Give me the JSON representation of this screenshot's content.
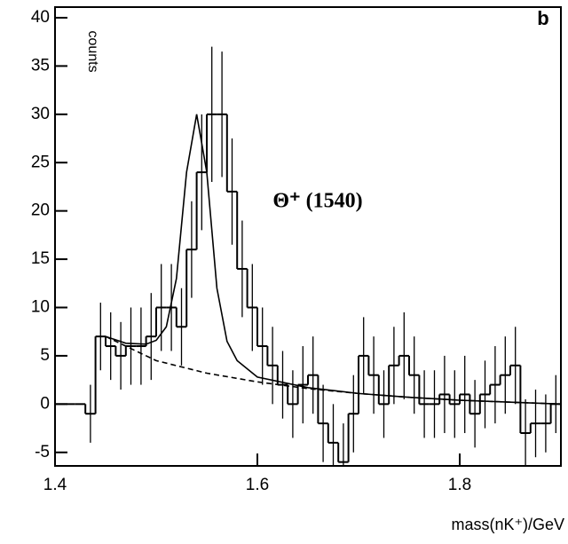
{
  "chart_data": {
    "type": "histogram",
    "panel_label": "b",
    "y_label": "counts",
    "x_label": "mass(nK⁺)/GeV",
    "annotation": "Θ⁺ (1540)",
    "bins": [
      1.4,
      1.41,
      1.42,
      1.43,
      1.44,
      1.45,
      1.46,
      1.47,
      1.48,
      1.49,
      1.5,
      1.51,
      1.52,
      1.53,
      1.54,
      1.55,
      1.56,
      1.57,
      1.58,
      1.59,
      1.6,
      1.61,
      1.62,
      1.63,
      1.64,
      1.65,
      1.66,
      1.67,
      1.68,
      1.69,
      1.7,
      1.71,
      1.72,
      1.73,
      1.74,
      1.75,
      1.76,
      1.77,
      1.78,
      1.79,
      1.8,
      1.81,
      1.82,
      1.83,
      1.84,
      1.85,
      1.86,
      1.87,
      1.88,
      1.89,
      1.9
    ],
    "values": [
      0,
      0,
      0,
      -1,
      7,
      6,
      5,
      6,
      6,
      7,
      10,
      10,
      8,
      16,
      24,
      30,
      30,
      22,
      14,
      10,
      6,
      4,
      2,
      0,
      2,
      3,
      -2,
      -4,
      -6,
      -1,
      5,
      3,
      0,
      4,
      5,
      3,
      0,
      0,
      1,
      0,
      1,
      -1,
      1,
      2,
      3,
      4,
      -3,
      -2,
      -2,
      0
    ],
    "errors": [
      0,
      0,
      0,
      3,
      3.5,
      3.5,
      3.5,
      4,
      4,
      4.5,
      4.5,
      4.5,
      4,
      5,
      6,
      7,
      6.5,
      5.5,
      5,
      4.5,
      4,
      4,
      3.5,
      3.5,
      4,
      4,
      4,
      4,
      4,
      4,
      4,
      4,
      3.5,
      4,
      4.5,
      4,
      3.5,
      3.5,
      4,
      3.5,
      4,
      3.5,
      3.5,
      4,
      4,
      4,
      3.5,
      3.5,
      3,
      3
    ],
    "fit": {
      "x": [
        1.45,
        1.47,
        1.49,
        1.5,
        1.51,
        1.52,
        1.53,
        1.54,
        1.55,
        1.56,
        1.57,
        1.58,
        1.6,
        1.65,
        1.7,
        1.75,
        1.8,
        1.85,
        1.9
      ],
      "values": [
        7,
        6.3,
        6.2,
        6.6,
        8,
        13,
        24,
        30,
        24,
        12,
        6.5,
        4.5,
        2.8,
        1.7,
        1.1,
        0.7,
        0.4,
        0.2,
        0
      ]
    },
    "background": {
      "x": [
        1.45,
        1.5,
        1.55,
        1.6,
        1.65,
        1.7,
        1.75,
        1.8,
        1.85,
        1.9
      ],
      "values": [
        7,
        4.5,
        3.2,
        2.3,
        1.6,
        1.1,
        0.7,
        0.4,
        0.2,
        0
      ]
    },
    "color": "#000000",
    "xlim": [
      1.4,
      1.9
    ],
    "ylim": [
      -6.4,
      41.1
    ],
    "xticks": [
      1.4,
      1.6,
      1.8
    ],
    "yticks": [
      -5,
      0,
      5,
      10,
      15,
      20,
      25,
      30,
      35,
      40
    ]
  }
}
